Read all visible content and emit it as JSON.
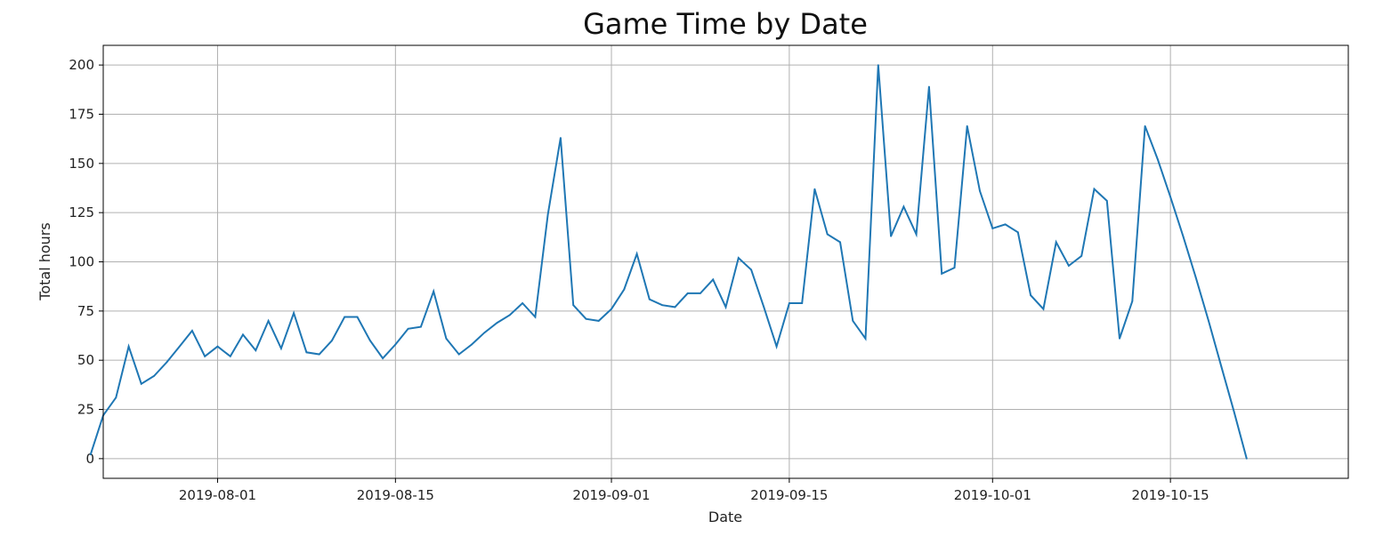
{
  "chart_data": {
    "type": "line",
    "title": "Game Time by Date",
    "xlabel": "Date",
    "ylabel": "Total hours",
    "xlim": [
      "2019-07-23",
      "2019-10-29"
    ],
    "ylim": [
      -10,
      210
    ],
    "x_ticks": [
      "2019-08-01",
      "2019-08-15",
      "2019-09-01",
      "2019-09-15",
      "2019-10-01",
      "2019-10-15"
    ],
    "y_ticks": [
      0,
      25,
      50,
      75,
      100,
      125,
      150,
      175,
      200
    ],
    "grid": true,
    "series": [
      {
        "color": "#1f77b4",
        "points": [
          [
            "2019-07-22",
            2
          ],
          [
            "2019-07-23",
            22
          ],
          [
            "2019-07-24",
            31
          ],
          [
            "2019-07-25",
            57
          ],
          [
            "2019-07-26",
            38
          ],
          [
            "2019-07-27",
            42
          ],
          [
            "2019-07-28",
            49
          ],
          [
            "2019-07-29",
            57
          ],
          [
            "2019-07-30",
            65
          ],
          [
            "2019-07-31",
            52
          ],
          [
            "2019-08-01",
            57
          ],
          [
            "2019-08-02",
            52
          ],
          [
            "2019-08-03",
            63
          ],
          [
            "2019-08-04",
            55
          ],
          [
            "2019-08-05",
            70
          ],
          [
            "2019-08-06",
            56
          ],
          [
            "2019-08-07",
            74
          ],
          [
            "2019-08-08",
            54
          ],
          [
            "2019-08-09",
            53
          ],
          [
            "2019-08-10",
            60
          ],
          [
            "2019-08-11",
            72
          ],
          [
            "2019-08-12",
            72
          ],
          [
            "2019-08-13",
            60
          ],
          [
            "2019-08-14",
            51
          ],
          [
            "2019-08-15",
            58
          ],
          [
            "2019-08-16",
            66
          ],
          [
            "2019-08-17",
            67
          ],
          [
            "2019-08-18",
            85
          ],
          [
            "2019-08-19",
            61
          ],
          [
            "2019-08-20",
            53
          ],
          [
            "2019-08-21",
            58
          ],
          [
            "2019-08-22",
            64
          ],
          [
            "2019-08-23",
            69
          ],
          [
            "2019-08-24",
            73
          ],
          [
            "2019-08-25",
            79
          ],
          [
            "2019-08-26",
            72
          ],
          [
            "2019-08-27",
            124
          ],
          [
            "2019-08-28",
            163
          ],
          [
            "2019-08-29",
            78
          ],
          [
            "2019-08-30",
            71
          ],
          [
            "2019-08-31",
            70
          ],
          [
            "2019-09-01",
            76
          ],
          [
            "2019-09-02",
            86
          ],
          [
            "2019-09-03",
            104
          ],
          [
            "2019-09-04",
            81
          ],
          [
            "2019-09-05",
            78
          ],
          [
            "2019-09-06",
            77
          ],
          [
            "2019-09-07",
            84
          ],
          [
            "2019-09-08",
            84
          ],
          [
            "2019-09-09",
            91
          ],
          [
            "2019-09-10",
            77
          ],
          [
            "2019-09-11",
            102
          ],
          [
            "2019-09-12",
            96
          ],
          [
            "2019-09-13",
            77
          ],
          [
            "2019-09-14",
            57
          ],
          [
            "2019-09-15",
            79
          ],
          [
            "2019-09-16",
            79
          ],
          [
            "2019-09-17",
            137
          ],
          [
            "2019-09-18",
            114
          ],
          [
            "2019-09-19",
            110
          ],
          [
            "2019-09-20",
            70
          ],
          [
            "2019-09-21",
            61
          ],
          [
            "2019-09-22",
            200
          ],
          [
            "2019-09-23",
            113
          ],
          [
            "2019-09-24",
            128
          ],
          [
            "2019-09-25",
            114
          ],
          [
            "2019-09-26",
            189
          ],
          [
            "2019-09-27",
            94
          ],
          [
            "2019-09-28",
            97
          ],
          [
            "2019-09-29",
            169
          ],
          [
            "2019-09-30",
            136
          ],
          [
            "2019-10-01",
            117
          ],
          [
            "2019-10-02",
            119
          ],
          [
            "2019-10-03",
            115
          ],
          [
            "2019-10-04",
            83
          ],
          [
            "2019-10-05",
            76
          ],
          [
            "2019-10-06",
            110
          ],
          [
            "2019-10-07",
            98
          ],
          [
            "2019-10-08",
            103
          ],
          [
            "2019-10-09",
            137
          ],
          [
            "2019-10-10",
            131
          ],
          [
            "2019-10-11",
            61
          ],
          [
            "2019-10-12",
            80
          ],
          [
            "2019-10-13",
            169
          ],
          [
            "2019-10-14",
            152
          ],
          [
            "2019-10-15",
            133
          ],
          [
            "2019-10-16",
            113
          ],
          [
            "2019-10-17",
            92
          ],
          [
            "2019-10-18",
            70
          ],
          [
            "2019-10-19",
            47
          ],
          [
            "2019-10-20",
            24
          ],
          [
            "2019-10-21",
            0
          ]
        ]
      }
    ]
  }
}
